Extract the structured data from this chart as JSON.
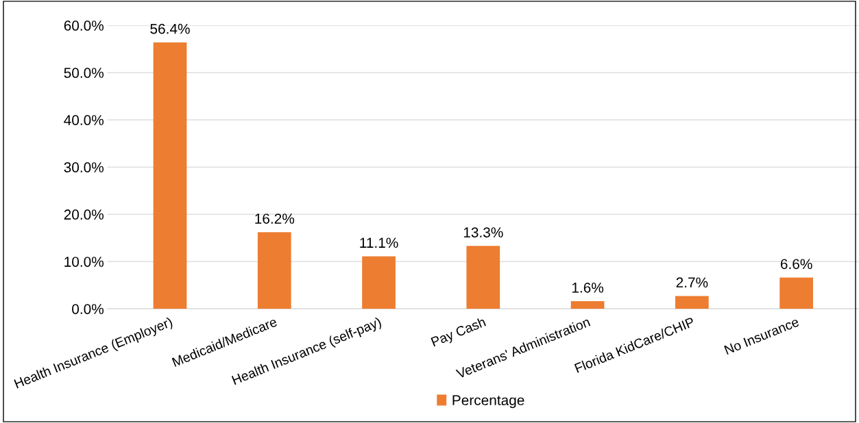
{
  "chart_data": {
    "type": "bar",
    "categories": [
      "Health Insurance (Employer)",
      "Medicaid/Medicare",
      "Health Insurance (self-pay)",
      "Pay Cash",
      "Veterans' Administration",
      "Florida KidCare/CHIP",
      "No Insurance"
    ],
    "series": [
      {
        "name": "Percentage",
        "color": "#ed7d31",
        "values": [
          56.4,
          16.2,
          11.1,
          13.3,
          1.6,
          2.7,
          6.6
        ]
      }
    ],
    "value_labels": [
      "56.4%",
      "16.2%",
      "11.1%",
      "13.3%",
      "1.6%",
      "2.7%",
      "6.6%"
    ],
    "ylim": [
      0,
      60
    ],
    "yticks": [
      {
        "value": 0,
        "label": "0.0%"
      },
      {
        "value": 10,
        "label": "10.0%"
      },
      {
        "value": 20,
        "label": "20.0%"
      },
      {
        "value": 30,
        "label": "30.0%"
      },
      {
        "value": 40,
        "label": "40.0%"
      },
      {
        "value": 50,
        "label": "50.0%"
      },
      {
        "value": 60,
        "label": "60.0%"
      }
    ],
    "grid": "y",
    "legend": "bottom"
  }
}
